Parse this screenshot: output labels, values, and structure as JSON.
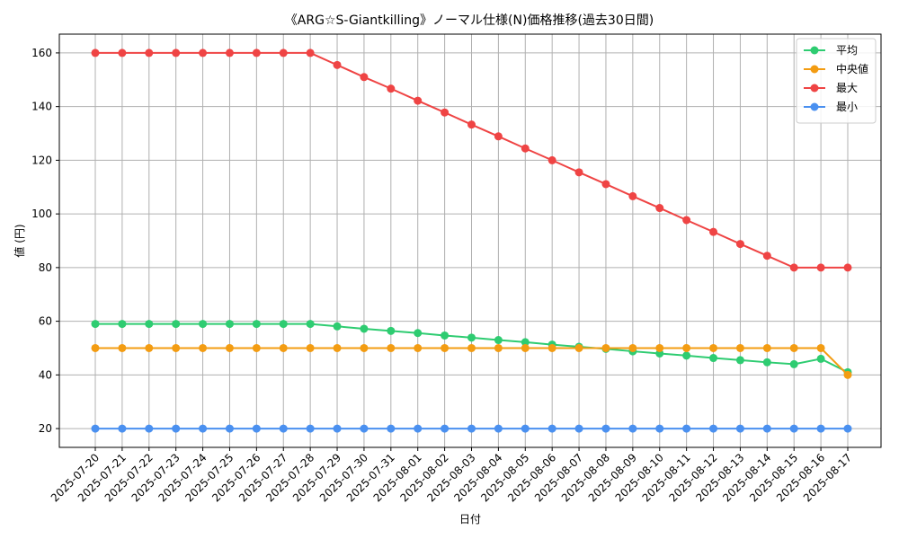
{
  "chart_data": {
    "type": "line",
    "title": "《ARG☆S-Giantkilling》ノーマル仕様(N)価格推移(過去30日間)",
    "xlabel": "日付",
    "ylabel": "値 (円)",
    "ylim": [
      13,
      167
    ],
    "yticks": [
      20,
      40,
      60,
      80,
      100,
      120,
      140,
      160
    ],
    "grid": true,
    "legend_position": "top-right",
    "categories": [
      "2025-07-20",
      "2025-07-21",
      "2025-07-22",
      "2025-07-23",
      "2025-07-24",
      "2025-07-25",
      "2025-07-26",
      "2025-07-27",
      "2025-07-28",
      "2025-07-29",
      "2025-07-30",
      "2025-07-31",
      "2025-08-01",
      "2025-08-02",
      "2025-08-03",
      "2025-08-04",
      "2025-08-05",
      "2025-08-06",
      "2025-08-07",
      "2025-08-08",
      "2025-08-09",
      "2025-08-10",
      "2025-08-11",
      "2025-08-12",
      "2025-08-13",
      "2025-08-14",
      "2025-08-15",
      "2025-08-16",
      "2025-08-17"
    ],
    "series": [
      {
        "name": "平均",
        "color": "#2ecc71",
        "values": [
          59,
          59,
          59,
          59,
          59,
          59,
          59,
          59,
          59,
          58.1,
          57.2,
          56.4,
          55.6,
          54.7,
          53.9,
          53,
          52.2,
          51.3,
          50.5,
          49.7,
          48.8,
          48,
          47.2,
          46.3,
          45.5,
          44.7,
          44,
          46,
          41
        ]
      },
      {
        "name": "中央値",
        "color": "#f39c12",
        "values": [
          50,
          50,
          50,
          50,
          50,
          50,
          50,
          50,
          50,
          50,
          50,
          50,
          50,
          50,
          50,
          50,
          50,
          50,
          50,
          50,
          50,
          50,
          50,
          50,
          50,
          50,
          50,
          50,
          40
        ]
      },
      {
        "name": "最大",
        "color": "#ef4444",
        "values": [
          160,
          160,
          160,
          160,
          160,
          160,
          160,
          160,
          160,
          155.5,
          151,
          146.7,
          142.2,
          137.8,
          133.3,
          128.9,
          124.4,
          120,
          115.5,
          111.1,
          106.6,
          102.2,
          97.7,
          93.3,
          88.8,
          84.4,
          80,
          80,
          80
        ]
      },
      {
        "name": "最小",
        "color": "#4a90f0",
        "values": [
          20,
          20,
          20,
          20,
          20,
          20,
          20,
          20,
          20,
          20,
          20,
          20,
          20,
          20,
          20,
          20,
          20,
          20,
          20,
          20,
          20,
          20,
          20,
          20,
          20,
          20,
          20,
          20,
          20
        ]
      }
    ]
  }
}
